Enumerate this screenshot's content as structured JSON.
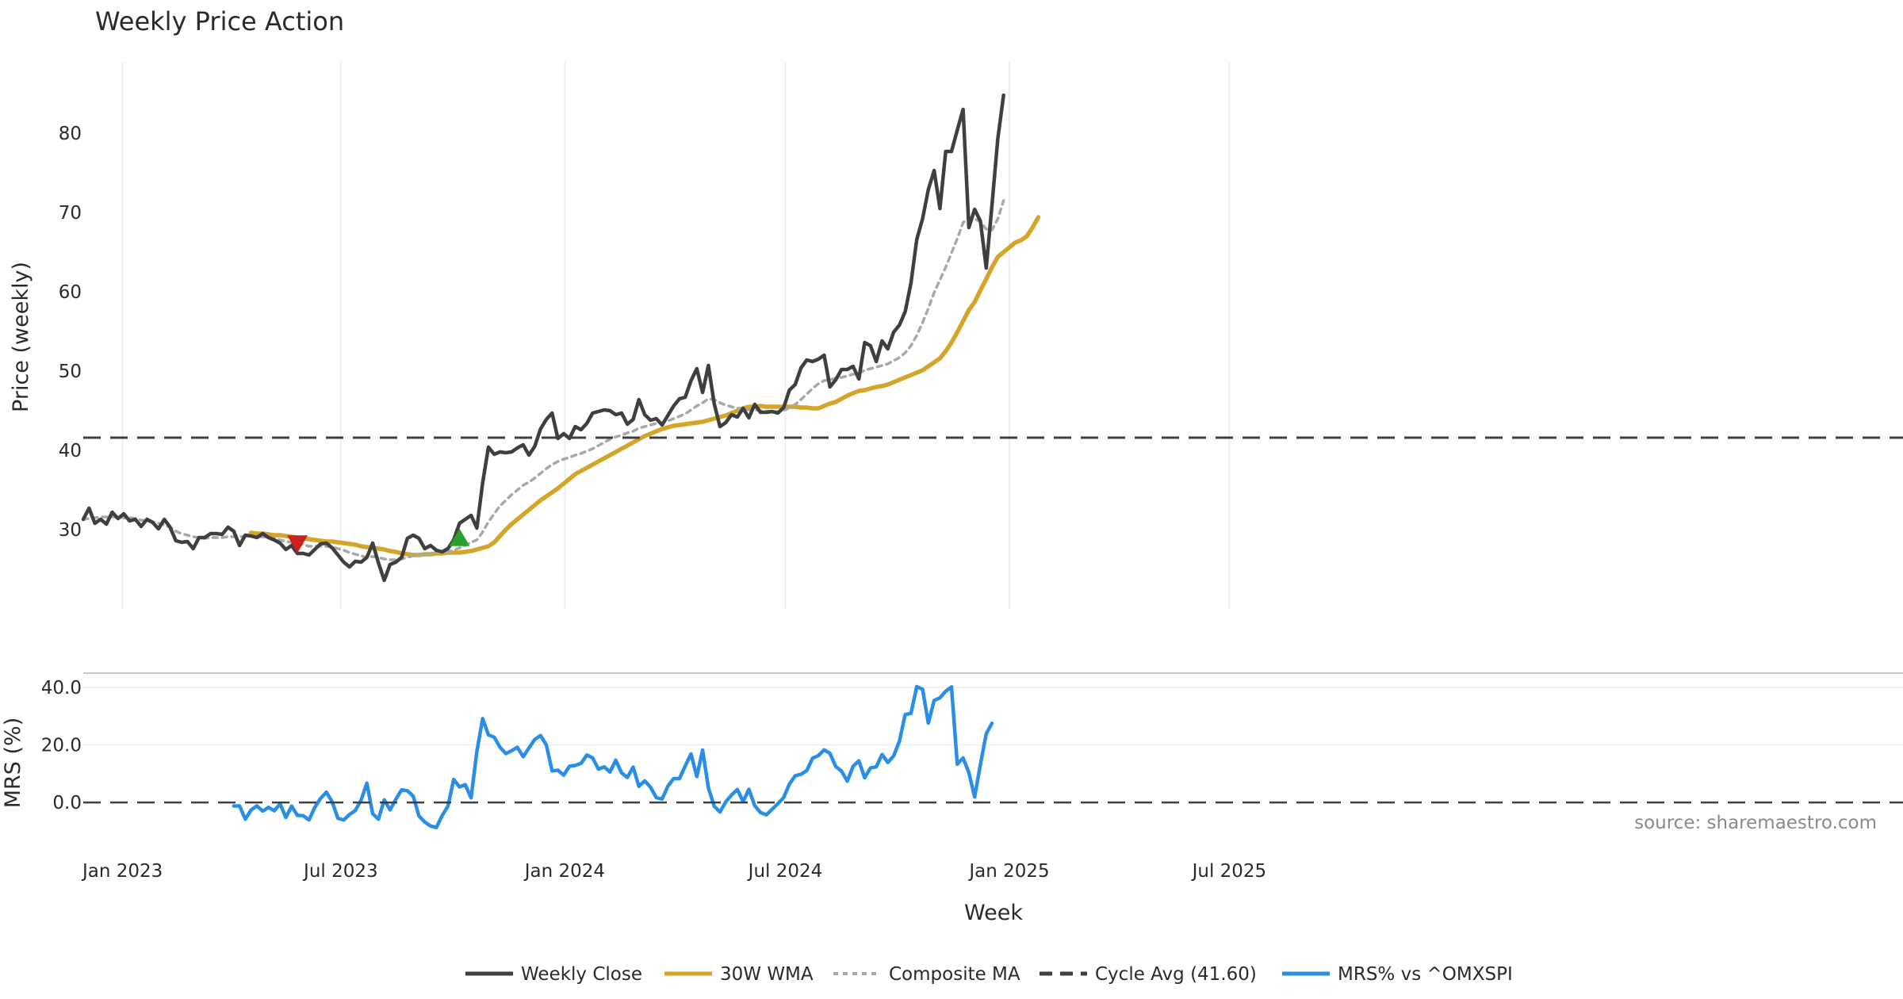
{
  "chart_data": {
    "type": "line",
    "title": "Weekly Price Action",
    "xlabel": "Week",
    "x_ticks": [
      "Jan 2023",
      "Jul 2023",
      "Jan 2024",
      "Jul 2024",
      "Jan 2025",
      "Jul 2025"
    ],
    "price_panel": {
      "ylabel": "Price (weekly)",
      "ylim": [
        20,
        89
      ],
      "y_ticks": [
        30,
        40,
        50,
        60,
        70,
        80
      ],
      "series": [
        {
          "name": "Weekly Close",
          "color": "#3f3f3f",
          "style": "solid",
          "start_week": 0,
          "values": [
            31.3,
            32.7,
            30.8,
            31.3,
            30.7,
            32.2,
            31.4,
            32.0,
            31.1,
            31.3,
            30.4,
            31.3,
            30.9,
            30.1,
            31.3,
            30.3,
            28.6,
            28.4,
            28.5,
            27.6,
            29.0,
            29.0,
            29.5,
            29.5,
            29.4,
            30.3,
            29.8,
            28.0,
            29.3,
            29.2,
            29.0,
            29.5,
            29.0,
            28.7,
            28.3,
            27.5,
            28.0,
            27.0,
            27.0,
            26.8,
            27.5,
            28.2,
            28.3,
            27.7,
            26.8,
            25.9,
            25.3,
            26.0,
            25.9,
            26.5,
            28.3,
            25.8,
            23.6,
            25.6,
            25.9,
            26.5,
            28.9,
            29.3,
            28.9,
            27.6,
            28.0,
            27.4,
            27.2,
            27.6,
            28.7,
            30.8,
            31.3,
            31.8,
            30.2,
            35.9,
            40.4,
            39.5,
            39.8,
            39.7,
            39.8,
            40.3,
            40.7,
            39.4,
            40.5,
            42.7,
            43.9,
            44.7,
            41.5,
            42.1,
            41.5,
            43.0,
            42.6,
            43.4,
            44.7,
            44.9,
            45.1,
            45.0,
            44.5,
            44.7,
            43.3,
            43.9,
            46.4,
            44.5,
            43.8,
            44.0,
            43.2,
            44.4,
            45.6,
            46.5,
            46.7,
            48.8,
            50.3,
            47.3,
            50.7,
            45.9,
            43.0,
            43.5,
            44.5,
            44.2,
            45.3,
            44.1,
            45.8,
            44.8,
            44.8,
            44.9,
            44.7,
            45.4,
            47.6,
            48.3,
            50.4,
            51.4,
            51.2,
            51.5,
            52.0,
            48.0,
            48.9,
            50.2,
            50.2,
            50.6,
            49.0,
            53.6,
            53.2,
            51.2,
            53.8,
            52.8,
            54.9,
            55.8,
            57.5,
            61.1,
            66.6,
            69.2,
            72.9,
            75.3,
            70.5,
            77.7,
            77.7,
            80.4,
            83.0,
            68.1,
            70.4,
            68.9,
            63.0,
            71.0,
            79.3,
            84.8
          ]
        },
        {
          "name": "30W WMA",
          "color": "#d4a52a",
          "style": "solid",
          "start_week": 29,
          "values": [
            29.6,
            29.5,
            29.5,
            29.4,
            29.3,
            29.3,
            29.2,
            29.1,
            29.0,
            28.9,
            28.8,
            28.7,
            28.6,
            28.5,
            28.5,
            28.4,
            28.3,
            28.2,
            28.1,
            27.9,
            27.8,
            27.7,
            27.6,
            27.5,
            27.3,
            27.2,
            27.0,
            26.9,
            26.8,
            26.8,
            26.9,
            26.9,
            27.0,
            27.0,
            27.1,
            27.1,
            27.1,
            27.2,
            27.3,
            27.5,
            27.7,
            27.9,
            28.4,
            29.2,
            30.0,
            30.7,
            31.3,
            31.9,
            32.5,
            33.1,
            33.7,
            34.2,
            34.7,
            35.2,
            35.8,
            36.4,
            37.0,
            37.4,
            37.8,
            38.2,
            38.6,
            39.0,
            39.4,
            39.8,
            40.2,
            40.6,
            41.0,
            41.4,
            41.8,
            42.1,
            42.4,
            42.7,
            42.9,
            43.1,
            43.2,
            43.3,
            43.4,
            43.5,
            43.6,
            43.8,
            44.0,
            44.2,
            44.4,
            44.7,
            45.0,
            45.3,
            45.5,
            45.5,
            45.6,
            45.5,
            45.5,
            45.5,
            45.5,
            45.5,
            45.5,
            45.4,
            45.4,
            45.3,
            45.3,
            45.6,
            45.9,
            46.1,
            46.5,
            46.9,
            47.2,
            47.5,
            47.6,
            47.8,
            48.0,
            48.1,
            48.3,
            48.6,
            48.9,
            49.2,
            49.5,
            49.8,
            50.1,
            50.6,
            51.1,
            51.6,
            52.5,
            53.6,
            54.9,
            56.3,
            57.7,
            58.7,
            60.2,
            61.6,
            63.1,
            64.4,
            65.0,
            65.6,
            66.2,
            66.5,
            67.0,
            68.1,
            69.4
          ]
        },
        {
          "name": "Composite MA",
          "color": "#a8a8a8",
          "style": "dotted",
          "start_week": 0,
          "values": [
            31.3,
            31.4,
            31.5,
            31.6,
            31.6,
            31.6,
            31.6,
            31.5,
            31.5,
            31.4,
            31.2,
            31.1,
            31.0,
            30.8,
            30.6,
            30.3,
            29.8,
            29.5,
            29.3,
            29.1,
            29.0,
            28.9,
            29.0,
            29.0,
            29.0,
            29.1,
            29.1,
            29.1,
            29.2,
            29.2,
            29.1,
            29.1,
            29.0,
            28.9,
            28.7,
            28.5,
            28.4,
            28.2,
            28.1,
            27.9,
            27.9,
            27.9,
            27.9,
            27.8,
            27.6,
            27.4,
            27.1,
            26.9,
            26.7,
            26.5,
            26.6,
            26.5,
            26.3,
            26.2,
            26.2,
            26.3,
            26.5,
            26.7,
            26.8,
            26.9,
            27.0,
            27.1,
            27.2,
            27.2,
            27.4,
            27.7,
            28.0,
            28.4,
            28.7,
            29.7,
            31.0,
            32.0,
            33.0,
            33.7,
            34.4,
            35.0,
            35.6,
            36.0,
            36.5,
            37.1,
            37.7,
            38.2,
            38.6,
            38.9,
            39.1,
            39.4,
            39.6,
            39.9,
            40.2,
            40.6,
            41.0,
            41.4,
            41.7,
            41.9,
            42.2,
            42.4,
            42.8,
            43.0,
            43.2,
            43.4,
            43.5,
            43.7,
            44.0,
            44.3,
            44.6,
            45.1,
            45.6,
            46.0,
            46.5,
            46.4,
            46.0,
            45.7,
            45.5,
            45.3,
            45.3,
            45.1,
            45.1,
            45.0,
            44.9,
            44.9,
            44.9,
            45.0,
            45.4,
            45.8,
            46.4,
            47.1,
            47.8,
            48.4,
            48.8,
            48.9,
            49.1,
            49.2,
            49.4,
            49.6,
            49.7,
            50.1,
            50.3,
            50.5,
            50.7,
            50.9,
            51.3,
            51.7,
            52.3,
            53.2,
            54.5,
            56.1,
            57.9,
            59.9,
            61.5,
            63.1,
            64.9,
            66.7,
            68.7,
            69.4,
            69.2,
            68.8,
            67.9,
            67.8,
            69.2,
            71.5
          ]
        },
        {
          "name": "Cycle Avg (41.60)",
          "color": "#3f3f3f",
          "style": "dashed",
          "constant": 41.6
        }
      ],
      "markers": [
        {
          "type": "sell",
          "shape": "triangle-down",
          "color": "#cc1f1f",
          "week": 37,
          "value": 28.3
        },
        {
          "type": "buy",
          "shape": "triangle-up",
          "color": "#2ca02c",
          "week": 65,
          "value": 28.9
        }
      ]
    },
    "mrs_panel": {
      "ylabel": "MRS (%)",
      "ylim": [
        -11,
        45
      ],
      "y_ticks": [
        "0.0",
        "20.0",
        "40.0"
      ],
      "y_tick_values": [
        0,
        20,
        40
      ],
      "series": [
        {
          "name": "MRS% vs ^OMXSPI",
          "color": "#2b8ee6",
          "style": "solid",
          "start_week": 26,
          "values": [
            -1.2,
            -1.2,
            -5.8,
            -2.6,
            -1.2,
            -3.0,
            -1.7,
            -2.9,
            -0.5,
            -5.2,
            -1.3,
            -4.5,
            -4.6,
            -6.1,
            -1.7,
            1.4,
            3.6,
            0.2,
            -5.5,
            -6.1,
            -4.2,
            -2.8,
            0.8,
            6.7,
            -3.9,
            -5.8,
            0.9,
            -2.6,
            1.1,
            4.4,
            4.1,
            2.2,
            -4.7,
            -6.8,
            -8.2,
            -8.7,
            -4.6,
            -1.3,
            8.0,
            5.4,
            6.2,
            1.6,
            17.7,
            29.2,
            23.5,
            22.7,
            19.2,
            17.0,
            18.0,
            19.2,
            15.9,
            19.0,
            21.9,
            23.3,
            20.0,
            11.0,
            11.2,
            9.5,
            12.6,
            12.9,
            13.6,
            16.5,
            15.5,
            11.6,
            12.4,
            10.6,
            14.7,
            10.3,
            8.7,
            12.3,
            5.6,
            7.5,
            5.3,
            1.7,
            1.2,
            5.7,
            8.3,
            8.3,
            12.7,
            16.9,
            9.0,
            18.2,
            5.1,
            -1.3,
            -3.3,
            0.2,
            2.6,
            4.5,
            0.3,
            4.6,
            -1.1,
            -3.5,
            -4.3,
            -2.4,
            -0.4,
            1.7,
            6.4,
            9.3,
            9.8,
            11.1,
            15.4,
            16.3,
            18.3,
            17.1,
            12.5,
            10.9,
            7.4,
            12.6,
            14.5,
            8.6,
            12.0,
            12.4,
            16.7,
            13.9,
            16.2,
            21.3,
            30.6,
            31.0,
            40.3,
            39.4,
            27.6,
            35.5,
            36.4,
            38.7,
            40.2,
            13.3,
            15.5,
            10.4,
            1.9,
            13.3,
            23.9,
            27.6
          ]
        },
        {
          "name": "zero line",
          "color": "#3f3f3f",
          "style": "dashed",
          "constant": 0
        }
      ]
    },
    "legend": [
      {
        "label": "Weekly Close",
        "color": "#3f3f3f",
        "style": "solid"
      },
      {
        "label": "30W WMA",
        "color": "#d4a52a",
        "style": "solid"
      },
      {
        "label": "Composite MA",
        "color": "#a8a8a8",
        "style": "dotted"
      },
      {
        "label": "Cycle Avg (41.60)",
        "color": "#3f3f3f",
        "style": "dashed"
      },
      {
        "label": "MRS% vs ^OMXSPI",
        "color": "#2b8ee6",
        "style": "solid"
      }
    ],
    "legend_position": "bottom-center",
    "source": "source: sharemaestro.com"
  }
}
